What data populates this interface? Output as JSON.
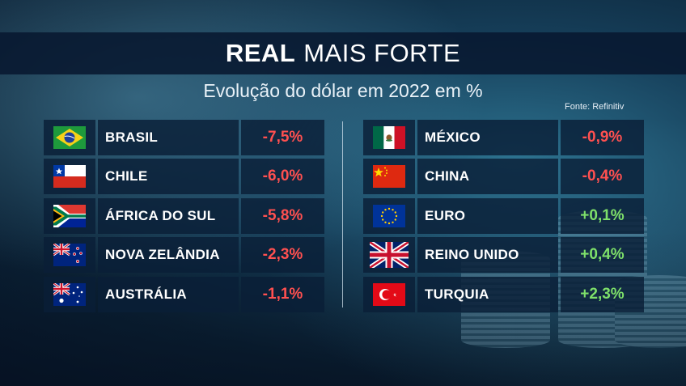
{
  "header": {
    "title_bold": "REAL",
    "title_rest": "MAIS FORTE",
    "subtitle": "Evolução do dólar em 2022 em %",
    "source": "Fonte: Refinitiv"
  },
  "colors": {
    "negative": "#ff5050",
    "positive": "#7ee06a",
    "panel": "#0a1e37"
  },
  "left_column": [
    {
      "country": "BRASIL",
      "value": "-7,5%",
      "flag_icon": "brazil-flag-icon"
    },
    {
      "country": "CHILE",
      "value": "-6,0%",
      "flag_icon": "chile-flag-icon"
    },
    {
      "country": "ÁFRICA DO SUL",
      "value": "-5,8%",
      "flag_icon": "south-africa-flag-icon"
    },
    {
      "country": "NOVA ZELÂNDIA",
      "value": "-2,3%",
      "flag_icon": "new-zealand-flag-icon"
    },
    {
      "country": "AUSTRÁLIA",
      "value": "-1,1%",
      "flag_icon": "australia-flag-icon"
    }
  ],
  "right_column": [
    {
      "country": "MÉXICO",
      "value": "-0,9%",
      "flag_icon": "mexico-flag-icon"
    },
    {
      "country": "CHINA",
      "value": "-0,4%",
      "flag_icon": "china-flag-icon"
    },
    {
      "country": "EURO",
      "value": "+0,1%",
      "flag_icon": "eu-flag-icon"
    },
    {
      "country": "REINO UNIDO",
      "value": "+0,4%",
      "flag_icon": "uk-flag-icon"
    },
    {
      "country": "TURQUIA",
      "value": "+2,3%",
      "flag_icon": "turkey-flag-icon"
    }
  ]
}
